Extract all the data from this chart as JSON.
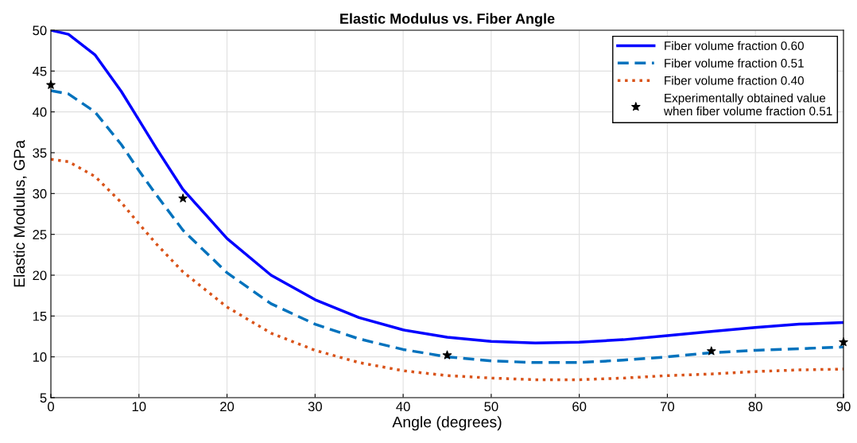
{
  "chart_data": {
    "type": "line",
    "title": "Elastic Modulus vs. Fiber Angle",
    "xlabel": "Angle (degrees)",
    "ylabel": "Elastic Modulus, GPa",
    "xlim": [
      0,
      90
    ],
    "ylim": [
      5,
      50
    ],
    "xticks": [
      0,
      10,
      20,
      30,
      40,
      50,
      60,
      70,
      80,
      90
    ],
    "yticks": [
      5,
      10,
      15,
      20,
      25,
      30,
      35,
      40,
      45,
      50
    ],
    "grid": true,
    "legend": "top right",
    "series": [
      {
        "name": "Fiber volume fraction 0.60",
        "color": "#0000ff",
        "line_style": "solid",
        "x": [
          0,
          2,
          5,
          8,
          10,
          12,
          15,
          20,
          25,
          30,
          35,
          40,
          45,
          50,
          55,
          60,
          65,
          70,
          75,
          80,
          85,
          90
        ],
        "values": [
          50,
          49.5,
          47,
          42.5,
          39,
          35.5,
          30.5,
          24.5,
          20,
          17,
          14.8,
          13.3,
          12.4,
          11.9,
          11.7,
          11.8,
          12.1,
          12.6,
          13.1,
          13.6,
          14.0,
          14.2
        ]
      },
      {
        "name": "Fiber volume fraction 0.51",
        "color": "#0072bd",
        "line_style": "dashed",
        "x": [
          0,
          2,
          5,
          8,
          10,
          12,
          15,
          20,
          25,
          30,
          35,
          40,
          45,
          50,
          55,
          60,
          65,
          70,
          75,
          80,
          85,
          90
        ],
        "values": [
          42.6,
          42.2,
          40,
          36,
          32.8,
          29.8,
          25.5,
          20.3,
          16.5,
          14,
          12.2,
          10.9,
          10.0,
          9.5,
          9.3,
          9.3,
          9.6,
          10.0,
          10.5,
          10.8,
          11.0,
          11.2
        ]
      },
      {
        "name": "Fiber volume fraction 0.40",
        "color": "#d95319",
        "line_style": "dotted",
        "x": [
          0,
          2,
          5,
          8,
          10,
          12,
          15,
          20,
          25,
          30,
          35,
          40,
          45,
          50,
          55,
          60,
          65,
          70,
          75,
          80,
          85,
          90
        ],
        "values": [
          34.2,
          33.9,
          32.1,
          28.9,
          26.3,
          23.8,
          20.4,
          16.1,
          12.9,
          10.8,
          9.3,
          8.3,
          7.7,
          7.4,
          7.2,
          7.2,
          7.4,
          7.7,
          7.9,
          8.2,
          8.4,
          8.5
        ]
      },
      {
        "name": "Experimentally obtained value\nwhen fiber volume fraction 0.51",
        "type": "scatter",
        "marker": "star",
        "color": "#000000",
        "x": [
          0,
          15,
          45,
          75,
          90
        ],
        "values": [
          43.3,
          29.4,
          10.2,
          10.7,
          11.8
        ]
      }
    ]
  }
}
